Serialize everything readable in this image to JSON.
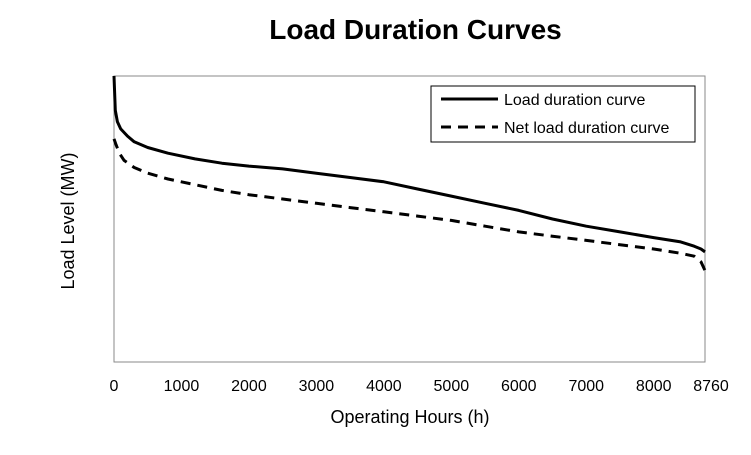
{
  "chart_data": {
    "type": "line",
    "title": "Load Duration Curves",
    "xlabel": "Operating Hours (h)",
    "ylabel": "Load Level (MW)",
    "xlim": [
      0,
      8760
    ],
    "ylim": [
      0,
      100
    ],
    "x_ticks": [
      "0",
      "1000",
      "2000",
      "3000",
      "4000",
      "5000",
      "6000",
      "7000",
      "8000",
      "8760"
    ],
    "x_tick_values": [
      0,
      1000,
      2000,
      3000,
      4000,
      5000,
      6000,
      7000,
      8000,
      8760
    ],
    "y_ticks_shown": false,
    "grid": false,
    "legend_position": "top-right",
    "series": [
      {
        "name": "Load duration curve",
        "style": "solid",
        "color": "#000000",
        "points": [
          [
            0,
            100
          ],
          [
            20,
            88
          ],
          [
            50,
            84
          ],
          [
            100,
            81.5
          ],
          [
            200,
            79
          ],
          [
            300,
            77
          ],
          [
            500,
            75
          ],
          [
            800,
            73
          ],
          [
            1200,
            71
          ],
          [
            1600,
            69.5
          ],
          [
            2000,
            68.5
          ],
          [
            2500,
            67.5
          ],
          [
            3000,
            66
          ],
          [
            3500,
            64.5
          ],
          [
            4000,
            63
          ],
          [
            4500,
            60.5
          ],
          [
            5000,
            58
          ],
          [
            5500,
            55.5
          ],
          [
            6000,
            53
          ],
          [
            6500,
            50
          ],
          [
            7000,
            47.5
          ],
          [
            7500,
            45.5
          ],
          [
            8000,
            43.5
          ],
          [
            8400,
            42
          ],
          [
            8600,
            40.5
          ],
          [
            8700,
            39.5
          ],
          [
            8760,
            38.5
          ]
        ]
      },
      {
        "name": "Net load duration curve",
        "style": "dashed",
        "color": "#000000",
        "points": [
          [
            0,
            78
          ],
          [
            30,
            76
          ],
          [
            80,
            73
          ],
          [
            150,
            70.5
          ],
          [
            300,
            68
          ],
          [
            500,
            66
          ],
          [
            800,
            64
          ],
          [
            1200,
            62
          ],
          [
            1600,
            60
          ],
          [
            2000,
            58.5
          ],
          [
            2500,
            57
          ],
          [
            3000,
            55.5
          ],
          [
            3500,
            54
          ],
          [
            4000,
            52.5
          ],
          [
            4500,
            51
          ],
          [
            5000,
            49.5
          ],
          [
            5500,
            47.5
          ],
          [
            6000,
            45.5
          ],
          [
            6500,
            44
          ],
          [
            7000,
            42.5
          ],
          [
            7500,
            41
          ],
          [
            8000,
            39.5
          ],
          [
            8400,
            38
          ],
          [
            8600,
            37
          ],
          [
            8700,
            35
          ],
          [
            8760,
            32
          ]
        ]
      }
    ]
  }
}
